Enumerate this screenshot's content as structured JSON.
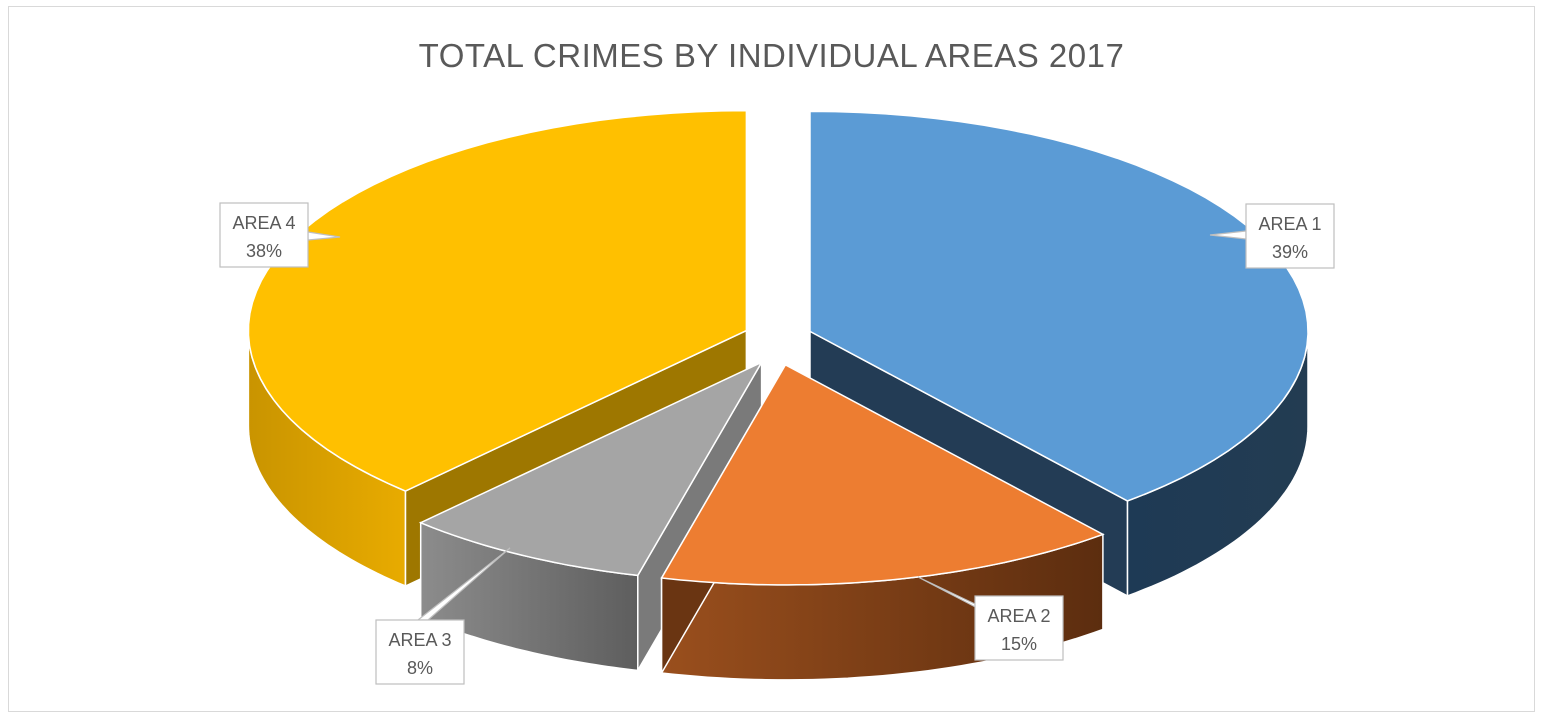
{
  "chart_data": {
    "type": "pie",
    "title": "TOTAL CRIMES BY INDIVIDUAL AREAS 2017",
    "categories": [
      "AREA 1",
      "AREA 2",
      "AREA 3",
      "AREA 4"
    ],
    "values": [
      39,
      15,
      8,
      38
    ],
    "value_labels": [
      "39%",
      "15%",
      "8%",
      "38%"
    ],
    "colors": [
      "#5B9BD5",
      "#ED7D31",
      "#A5A5A5",
      "#FFC000"
    ],
    "exploded": true,
    "three_d": true,
    "legend": "none"
  }
}
